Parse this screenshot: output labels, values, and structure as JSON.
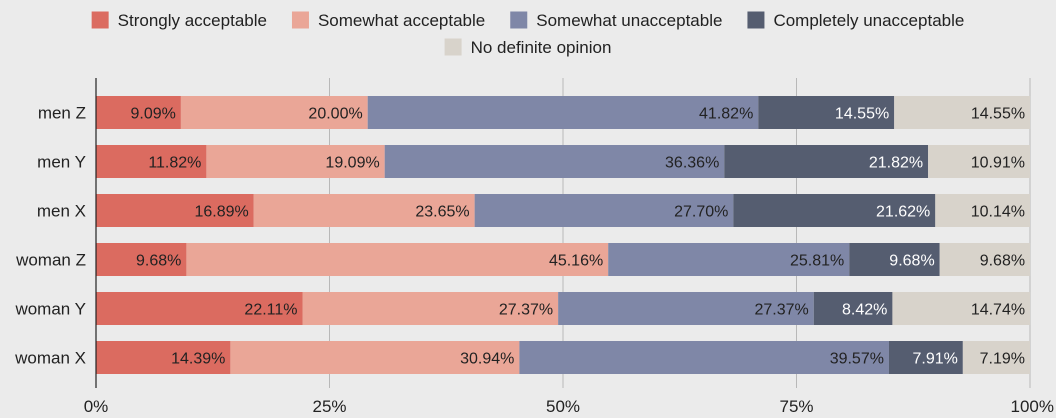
{
  "chart_data": {
    "type": "bar",
    "orientation": "horizontal",
    "stacked": true,
    "title": "",
    "xlabel": "",
    "ylabel": "",
    "xlim": [
      0,
      100
    ],
    "x_ticks": [
      "0%",
      "25%",
      "50%",
      "75%",
      "100%"
    ],
    "grid": true,
    "legend_position": "top",
    "categories": [
      "men Z",
      "men Y",
      "men X",
      "woman Z",
      "woman Y",
      "woman X"
    ],
    "series": [
      {
        "name": "Strongly acceptable",
        "color": "#db6b60",
        "label_color": "#222222",
        "values": [
          9.09,
          11.82,
          16.89,
          9.68,
          22.11,
          14.39
        ],
        "labels": [
          "9.09%",
          "11.82%",
          "16.89%",
          "9.68%",
          "22.11%",
          "14.39%"
        ]
      },
      {
        "name": "Somewhat acceptable",
        "color": "#eaa697",
        "label_color": "#222222",
        "values": [
          20.0,
          19.09,
          23.65,
          45.16,
          27.37,
          30.94
        ],
        "labels": [
          "20.00%",
          "19.09%",
          "23.65%",
          "45.16%",
          "27.37%",
          "30.94%"
        ]
      },
      {
        "name": "Somewhat unacceptable",
        "color": "#7f87a7",
        "label_color": "#222222",
        "values": [
          41.82,
          36.36,
          27.7,
          25.81,
          27.37,
          39.57
        ],
        "labels": [
          "41.82%",
          "36.36%",
          "27.70%",
          "25.81%",
          "27.37%",
          "39.57%"
        ]
      },
      {
        "name": "Completely unacceptable",
        "color": "#555d70",
        "label_color": "#ffffff",
        "values": [
          14.55,
          21.82,
          21.62,
          9.68,
          8.42,
          7.91
        ],
        "labels": [
          "14.55%",
          "21.82%",
          "21.62%",
          "9.68%",
          "8.42%",
          "7.91%"
        ]
      },
      {
        "name": "No definite opinion",
        "color": "#d8d3cb",
        "label_color": "#222222",
        "values": [
          14.55,
          10.91,
          10.14,
          9.68,
          14.74,
          7.19
        ],
        "labels": [
          "14.55%",
          "10.91%",
          "10.14%",
          "9.68%",
          "14.74%",
          "7.19%"
        ]
      }
    ]
  }
}
